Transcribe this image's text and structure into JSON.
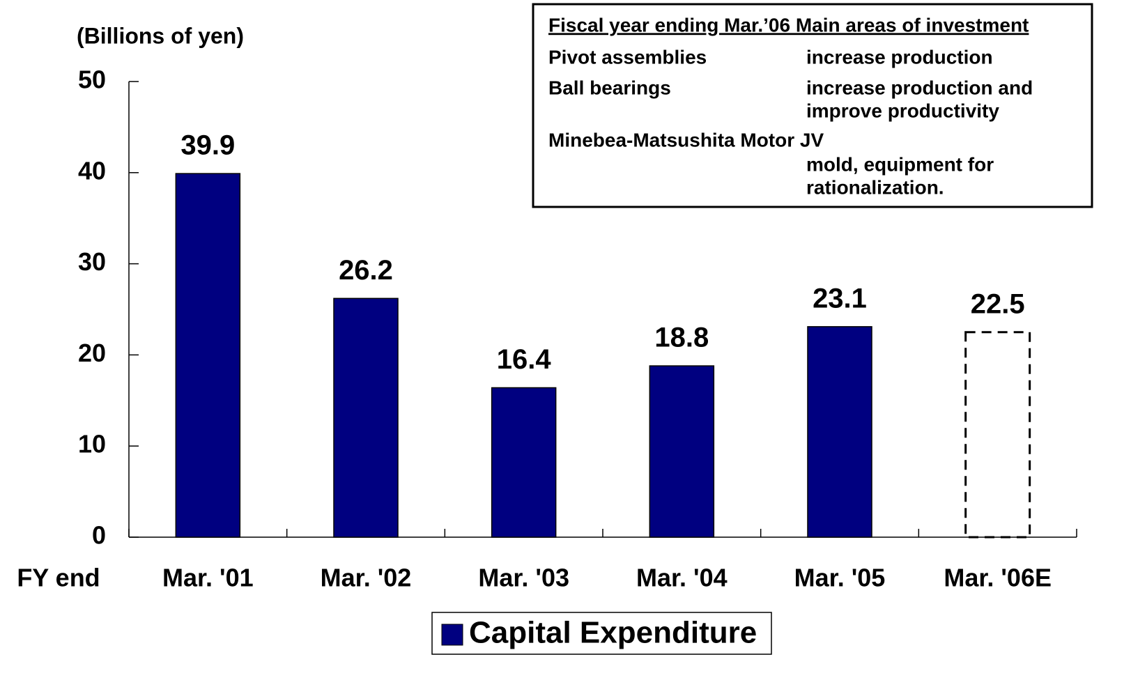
{
  "chart_data": {
    "type": "bar",
    "y_label": "(Billions of yen)",
    "x_label": "FY end",
    "categories": [
      "Mar. '01",
      "Mar. '02",
      "Mar. '03",
      "Mar. '04",
      "Mar. '05",
      "Mar. '06E"
    ],
    "series": [
      {
        "name": "Capital Expenditure",
        "color": "#000080",
        "values": [
          39.9,
          26.2,
          16.4,
          18.8,
          23.1,
          22.5
        ],
        "dashed": [
          false,
          false,
          false,
          false,
          false,
          true
        ]
      }
    ],
    "ylim": [
      0,
      50
    ],
    "yticks": [
      0,
      10,
      20,
      30,
      40,
      50
    ],
    "grid": false,
    "legend": "bottom",
    "note": {
      "title": "Fiscal year ending Mar.’06  Main areas of investment",
      "rows": [
        {
          "item": "Pivot assemblies",
          "description": [
            "increase production"
          ]
        },
        {
          "item": "Ball bearings",
          "description": [
            "increase production and",
            "improve productivity"
          ]
        },
        {
          "item": "Minebea-Matsushita Motor JV",
          "description": [
            "mold, equipment for",
            "rationalization."
          ]
        }
      ]
    }
  }
}
